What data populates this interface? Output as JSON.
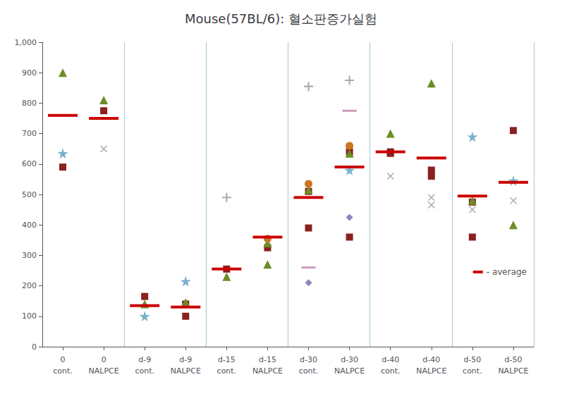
{
  "chart_data": {
    "type": "scatter",
    "title": "Mouse(57BL/6): 혈소판증가실험",
    "categories": [
      "0\ncont.",
      "0\nNALPCE",
      "d-9\ncont.",
      "d-9\nNALPCE",
      "d-15\ncont.",
      "d-15\nNALPCE",
      "d-30\ncont.",
      "d-30\nNALPCE",
      "d-40\ncont.",
      "d-40\nNALPCE",
      "d-50\ncont.",
      "d-50\nNALPCE"
    ],
    "ylim": [
      0,
      1000
    ],
    "yticks": [
      0,
      100,
      200,
      300,
      400,
      500,
      600,
      700,
      800,
      900,
      1000
    ],
    "grid": false,
    "legend": "lower right",
    "series": [
      {
        "marker": "square",
        "color": "#8B2020",
        "values": [
          [
            590
          ],
          [
            775
          ],
          [
            165
          ],
          [
            140,
            100
          ],
          [
            255
          ],
          [
            325
          ],
          [
            510,
            390
          ],
          [
            640,
            360
          ],
          [
            640,
            635
          ],
          [
            580,
            560
          ],
          [
            475,
            360
          ],
          [
            710
          ]
        ]
      },
      {
        "marker": "star",
        "color": "#7ab0cc",
        "values": [
          [
            635
          ],
          [],
          [
            100
          ],
          [
            215
          ],
          [],
          [],
          [],
          [
            580
          ],
          [],
          [],
          [
            690
          ],
          [
            545
          ]
        ]
      },
      {
        "marker": "triangle",
        "color": "#6B8E23",
        "values": [
          [
            900
          ],
          [
            810
          ],
          [
            140
          ],
          [
            145
          ],
          [
            230
          ],
          [
            340,
            270
          ],
          [
            515
          ],
          [
            635
          ],
          [
            700
          ],
          [
            865
          ],
          [
            480
          ],
          [
            400
          ]
        ]
      },
      {
        "marker": "x",
        "color": "#aaaaaa",
        "values": [
          [],
          [
            650
          ],
          [],
          [],
          [],
          [],
          [],
          [],
          [
            560
          ],
          [
            465,
            490
          ],
          [
            450
          ],
          [
            480
          ]
        ]
      },
      {
        "marker": "plus",
        "color": "#aaaaaa",
        "values": [
          [],
          [],
          [],
          [],
          [
            490
          ],
          [],
          [
            855
          ],
          [
            875
          ],
          [],
          [],
          [],
          []
        ]
      },
      {
        "marker": "circle",
        "color": "#cc7722",
        "values": [
          [],
          [],
          [],
          [],
          [],
          [
            355
          ],
          [
            535
          ],
          [
            660
          ],
          [],
          [],
          [],
          []
        ]
      },
      {
        "marker": "dash",
        "color": "#cc99bb",
        "values": [
          [],
          [],
          [],
          [],
          [],
          [],
          [
            260
          ],
          [
            775
          ],
          [],
          [],
          [],
          []
        ]
      },
      {
        "marker": "diamond",
        "color": "#8888bb",
        "values": [
          [],
          [],
          [],
          [],
          [],
          [],
          [
            210
          ],
          [
            425
          ],
          [],
          [],
          [],
          []
        ]
      },
      {
        "name": "- average",
        "marker": "bar",
        "color": "#cc0000",
        "values": [
          760,
          750,
          135,
          130,
          255,
          360,
          490,
          590,
          640,
          620,
          495,
          540
        ]
      }
    ]
  }
}
